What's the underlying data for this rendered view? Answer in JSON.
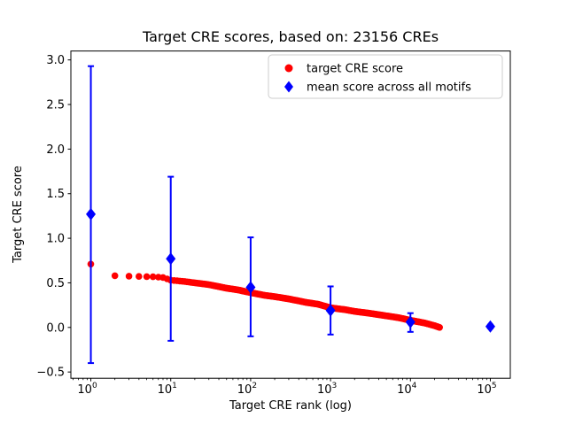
{
  "chart_data": {
    "type": "scatter",
    "title": "Target CRE scores, based on: 23156 CREs",
    "xlabel": "Target CRE rank (log)",
    "ylabel": "Target CRE score",
    "x_scale": "log",
    "xlim_log10": [
      -0.25,
      5.25
    ],
    "ylim": [
      -0.57,
      3.1
    ],
    "x_ticks": [
      1,
      10,
      100,
      1000,
      10000,
      100000
    ],
    "x_tick_labels": [
      [
        "10",
        "0"
      ],
      [
        "10",
        "1"
      ],
      [
        "10",
        "2"
      ],
      [
        "10",
        "3"
      ],
      [
        "10",
        "4"
      ],
      [
        "10",
        "5"
      ]
    ],
    "y_ticks": [
      -0.5,
      0.0,
      0.5,
      1.0,
      1.5,
      2.0,
      2.5,
      3.0
    ],
    "y_tick_labels": [
      "−0.5",
      "0.0",
      "0.5",
      "1.0",
      "1.5",
      "2.0",
      "2.5",
      "3.0"
    ],
    "n_cres": 23156,
    "legend": {
      "position": "upper right",
      "entries": [
        "target CRE score",
        "mean score across all motifs"
      ]
    },
    "series": [
      {
        "name": "target CRE score",
        "type": "scatter",
        "marker": "circle",
        "color": "#ff0000",
        "rank_max": 23156,
        "profile": [
          [
            1,
            0.71
          ],
          [
            2,
            0.58
          ],
          [
            3,
            0.575
          ],
          [
            4,
            0.572
          ],
          [
            5,
            0.57
          ],
          [
            6,
            0.568
          ],
          [
            8,
            0.56
          ],
          [
            10,
            0.53
          ],
          [
            15,
            0.515
          ],
          [
            20,
            0.5
          ],
          [
            30,
            0.48
          ],
          [
            50,
            0.44
          ],
          [
            70,
            0.42
          ],
          [
            100,
            0.39
          ],
          [
            150,
            0.36
          ],
          [
            200,
            0.345
          ],
          [
            300,
            0.32
          ],
          [
            500,
            0.28
          ],
          [
            700,
            0.26
          ],
          [
            1000,
            0.22
          ],
          [
            1500,
            0.2
          ],
          [
            2000,
            0.18
          ],
          [
            3000,
            0.16
          ],
          [
            5000,
            0.13
          ],
          [
            7000,
            0.11
          ],
          [
            10000,
            0.08
          ],
          [
            15000,
            0.05
          ],
          [
            20000,
            0.02
          ],
          [
            23156,
            0.0
          ]
        ]
      },
      {
        "name": "mean score across all motifs",
        "type": "errorbar",
        "marker": "diamond",
        "color": "#0000ff",
        "x": [
          1,
          10,
          100,
          1000,
          10000,
          100000
        ],
        "y": [
          1.27,
          0.77,
          0.45,
          0.19,
          0.06,
          0.01
        ],
        "y_lo": [
          -0.4,
          -0.15,
          -0.1,
          -0.08,
          -0.05,
          -0.01
        ],
        "y_hi": [
          2.93,
          1.69,
          1.01,
          0.46,
          0.16,
          0.03
        ]
      }
    ]
  }
}
